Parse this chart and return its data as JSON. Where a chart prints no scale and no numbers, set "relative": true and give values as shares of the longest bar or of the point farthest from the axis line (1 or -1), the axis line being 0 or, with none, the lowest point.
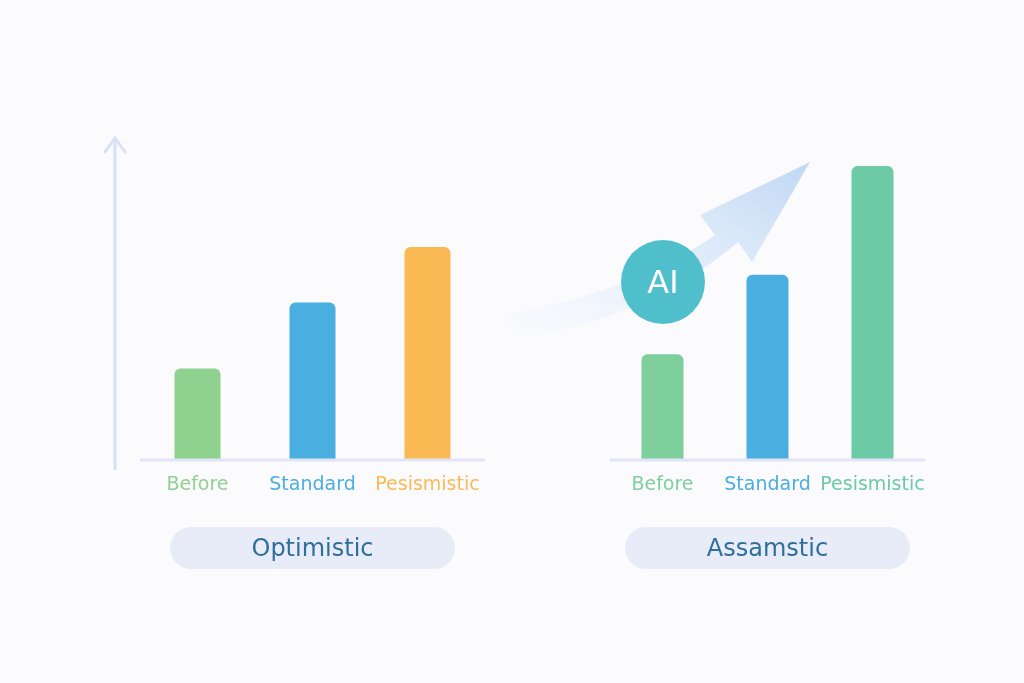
{
  "chart_data": [
    {
      "type": "bar",
      "relative": true,
      "xlabel": "Optimistic",
      "categories": [
        "Before",
        "Standard",
        "Pesismistic"
      ],
      "values": [
        0.43,
        0.74,
        1
      ],
      "colors": [
        "#8fd18f",
        "#4aaee0",
        "#fbb954"
      ]
    },
    {
      "type": "bar",
      "relative": true,
      "xlabel": "Assamstic",
      "annotations": [
        "AI"
      ],
      "categories": [
        "Before",
        "Standard",
        "Pesismistic"
      ],
      "values": [
        0.36,
        0.63,
        1
      ],
      "colors": [
        "#7fcf9c",
        "#4aaee0",
        "#6ccaa6"
      ]
    }
  ]
}
